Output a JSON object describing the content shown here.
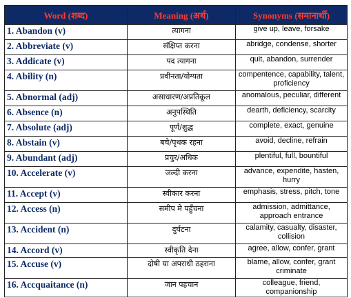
{
  "headers": {
    "word": "Word (शब्द)",
    "meaning": "Meaning (अर्थ)",
    "synonyms": "Synonyms (समानार्थी)"
  },
  "rows": [
    {
      "word": "1. Abandon (v)",
      "meaning": "त्यागना",
      "synonyms": "give up, leave, forsake"
    },
    {
      "word": "2. Abbreviate (v)",
      "meaning": "संक्षिप्त करना",
      "synonyms": "abridge, condense, shorter"
    },
    {
      "word": "3. Addicate (v)",
      "meaning": "पद त्यागना",
      "synonyms": "quit, abandon, surrender"
    },
    {
      "word": "4. Ability (n)",
      "meaning": "प्रवीनता/योग्यता",
      "synonyms": "compentence, capability, talent, proficiency"
    },
    {
      "word": "5. Abnormal (adj)",
      "meaning": "असाधारण/अप्रतिकूल",
      "synonyms": "anomalous, peculiar, different"
    },
    {
      "word": "6. Absence (n)",
      "meaning": "अनुपस्थिति",
      "synonyms": "dearth, deficiency, scarcity"
    },
    {
      "word": "7. Absolute (adj)",
      "meaning": "पूर्ण/शुद्ध",
      "synonyms": "complete, exact, genuine"
    },
    {
      "word": "8. Abstain (v)",
      "meaning": "बचे/पृथक रहना",
      "synonyms": "avoid, decline, refrain"
    },
    {
      "word": "9. Abundant (adj)",
      "meaning": "प्रचुर/अधिक",
      "synonyms": "plentiful, full, bountiful"
    },
    {
      "word": "10. Accelerate (v)",
      "meaning": "जल्दी करना",
      "synonyms": "advance, expendite, hasten, hurry"
    },
    {
      "word": "11. Accept (v)",
      "meaning": "स्वीकार करना",
      "synonyms": "emphasis, stress, pitch, tone"
    },
    {
      "word": "12. Access (n)",
      "meaning": "समीप मे पहुँचना",
      "synonyms": "admission, admittance, approach entrance"
    },
    {
      "word": "13. Accident (n)",
      "meaning": "दुर्घटना",
      "synonyms": "calamity, casualty, disaster, collision"
    },
    {
      "word": "14. Accord (v)",
      "meaning": "स्वीकृति देना",
      "synonyms": "agree, allow, confer, grant"
    },
    {
      "word": "15. Accuse (v)",
      "meaning": "दोषी या अपराधी ठहराना",
      "synonyms": "blame, allow, confer, grant criminate"
    },
    {
      "word": "16. Accquaitance (n)",
      "meaning": "जान पहचान",
      "synonyms": "colleague, friend, companionship"
    }
  ]
}
